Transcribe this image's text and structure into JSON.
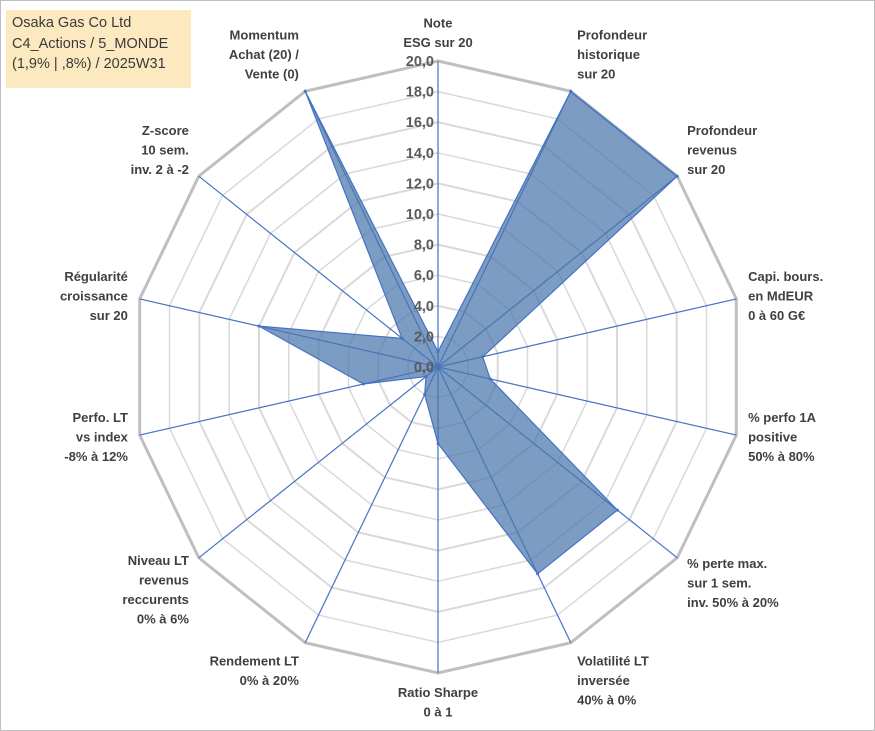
{
  "title": {
    "lines": [
      "Osaka Gas Co Ltd",
      "C4_Actions / 5_MONDE",
      "(1,9% | ,8%) / 2025W31"
    ]
  },
  "chart_data": {
    "type": "radar",
    "axes": [
      [
        "Note",
        "ESG sur 20"
      ],
      [
        "Profondeur",
        "historique",
        "sur 20"
      ],
      [
        "Profondeur",
        "revenus",
        "sur 20"
      ],
      [
        "Capi. bours.",
        "en MdEUR",
        "0 à 60 G€"
      ],
      [
        "% perfo 1A",
        "positive",
        "50% à 80%"
      ],
      [
        "% perte max.",
        "sur 1 sem.",
        "inv. 50% à 20%"
      ],
      [
        "Volatilité LT",
        "inversée",
        "40% à 0%"
      ],
      [
        "Ratio Sharpe",
        "0 à 1"
      ],
      [
        "Rendement LT",
        "0% à 20%"
      ],
      [
        "Niveau LT",
        "revenus",
        "reccurents",
        "0% à 6%"
      ],
      [
        "Perfo. LT",
        "vs index",
        "-8% à 12%"
      ],
      [
        "Régularité",
        "croissance",
        "sur 20"
      ],
      [
        "Z-score",
        "10 sem.",
        "inv. 2 à -2"
      ],
      [
        "Momentum",
        "Achat (20) /",
        "Vente (0)"
      ]
    ],
    "values": [
      1.0,
      20.0,
      20.0,
      3.0,
      3.5,
      15.0,
      15.0,
      5.0,
      2.0,
      1.0,
      5.0,
      12.0,
      3.0,
      20.0
    ],
    "rmin": 0,
    "rmax": 20,
    "ticks": [
      "0,0",
      "2,0",
      "4,0",
      "6,0",
      "8,0",
      "10,0",
      "12,0",
      "14,0",
      "16,0",
      "18,0",
      "20,0"
    ],
    "colors": {
      "fill": "#4a76ac",
      "stroke": "#4472c4",
      "grid": "#d9d9d9",
      "spoke": "#4472c4"
    },
    "legend": "none"
  }
}
